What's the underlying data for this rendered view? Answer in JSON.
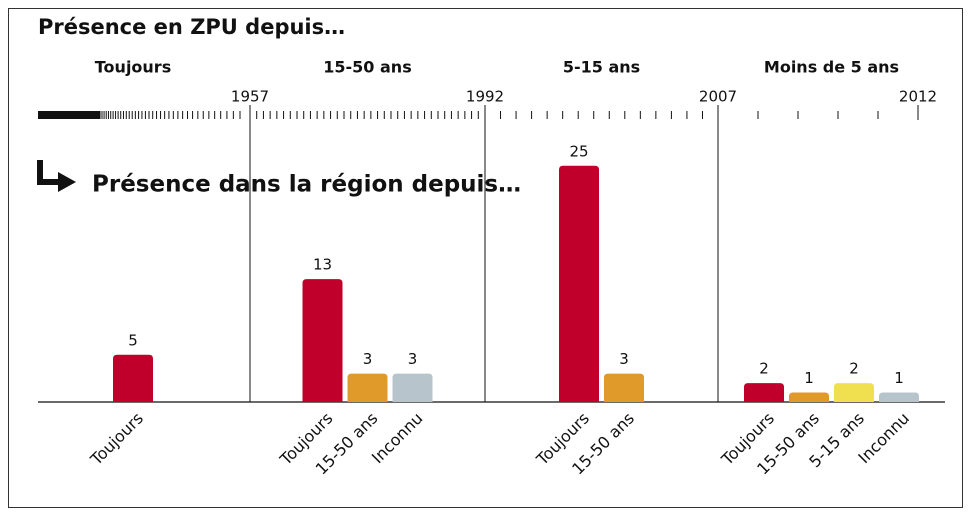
{
  "chart_data": {
    "type": "bar",
    "title": "Présence en ZPU depuis…",
    "subtitle": "Présence dans la région depuis…",
    "xticks": [
      1957,
      1992,
      2007,
      2012
    ],
    "groups": [
      {
        "label": "Toujours",
        "categories": [
          "Toujours"
        ],
        "values": [
          5
        ],
        "colors": [
          "#c0002a"
        ]
      },
      {
        "label": "15-50 ans",
        "categories": [
          "Toujours",
          "15-50 ans",
          "Inconnu"
        ],
        "values": [
          13,
          3,
          3
        ],
        "colors": [
          "#c0002a",
          "#e09a2a",
          "#b8c4cc"
        ]
      },
      {
        "label": "5-15 ans",
        "categories": [
          "Toujours",
          "15-50 ans"
        ],
        "values": [
          25,
          3
        ],
        "colors": [
          "#c0002a",
          "#e09a2a"
        ]
      },
      {
        "label": "Moins de 5 ans",
        "categories": [
          "Toujours",
          "15-50 ans",
          "5-15 ans",
          "Inconnu"
        ],
        "values": [
          2,
          1,
          2,
          1
        ],
        "colors": [
          "#c0002a",
          "#e09a2a",
          "#f0e050",
          "#b8c4cc"
        ]
      }
    ]
  }
}
